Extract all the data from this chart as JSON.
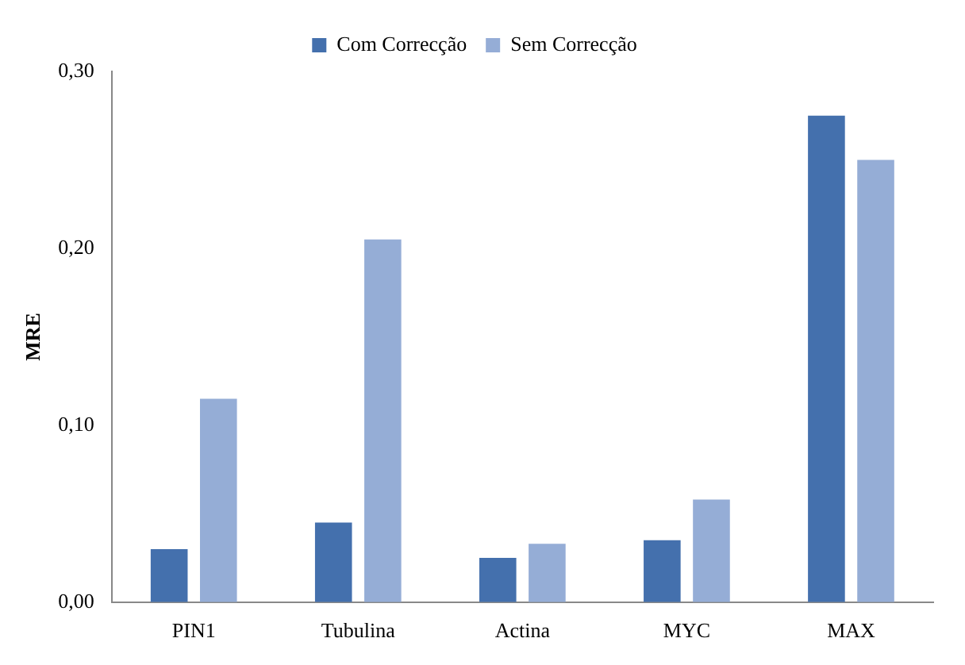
{
  "chart_data": {
    "type": "bar",
    "ylabel": "MRE",
    "categories": [
      "PIN1",
      "Tubulina",
      "Actina",
      "MYC",
      "MAX"
    ],
    "series": [
      {
        "name": "Com Correcção",
        "color": "#4470ad",
        "values": [
          0.03,
          0.045,
          0.025,
          0.035,
          0.275
        ]
      },
      {
        "name": "Sem Correcção",
        "color": "#95add6",
        "values": [
          0.115,
          0.205,
          0.033,
          0.058,
          0.25
        ]
      }
    ],
    "ylim": [
      0,
      0.3
    ],
    "yticks": [
      {
        "value": 0,
        "label": "0,00"
      },
      {
        "value": 0.1,
        "label": "0,10"
      },
      {
        "value": 0.2,
        "label": "0,20"
      },
      {
        "value": 0.3,
        "label": "0,30"
      }
    ],
    "grid": false,
    "legend": "top"
  }
}
